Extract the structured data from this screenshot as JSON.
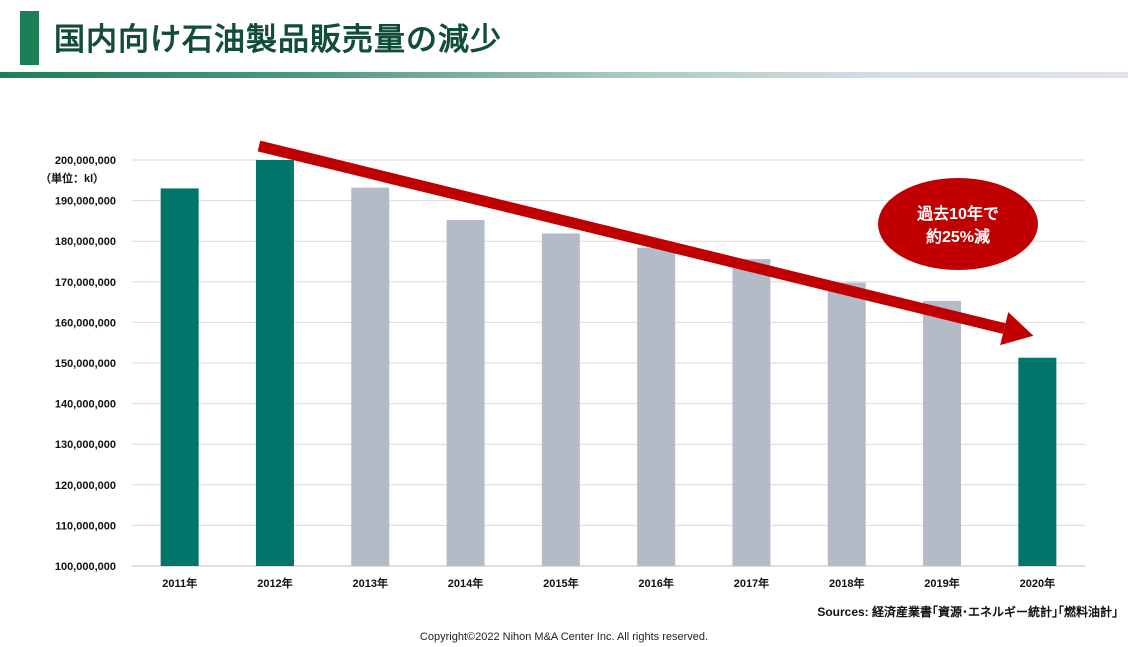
{
  "page": {
    "title": "国内向け石油製品販売量の減少",
    "sources": "Sources:  経済産業書｢資源･エネルギー統計｣｢燃料油計｣",
    "copyright": "Copyright©2022 Nihon M&A Center Inc. All rights reserved."
  },
  "colors": {
    "highlight_bar": "#00756a",
    "normal_bar": "#b4bac6",
    "trend_arrow": "#c00000",
    "callout": "#c00000",
    "title_accent": "#1d7f55",
    "title_text": "#124c3a"
  },
  "chart_data": {
    "type": "bar",
    "title": "国内向け石油製品販売量の減少",
    "unit_label": "（単位：kl）",
    "categories": [
      "2011年",
      "2012年",
      "2013年",
      "2014年",
      "2015年",
      "2016年",
      "2017年",
      "2018年",
      "2019年",
      "2020年"
    ],
    "values": [
      193000000,
      200000000,
      193200000,
      185200000,
      181900000,
      178400000,
      175600000,
      169800000,
      165300000,
      151300000
    ],
    "highlighted": [
      "2011年",
      "2012年",
      "2020年"
    ],
    "ylim": [
      100000000,
      200000000
    ],
    "ytick_step": 10000000,
    "grid": true,
    "annotation": {
      "type": "trend-arrow",
      "from_category": "2012年",
      "to_category": "2020年",
      "text_line1": "過去10年で",
      "text_line2": "約25%減"
    }
  }
}
